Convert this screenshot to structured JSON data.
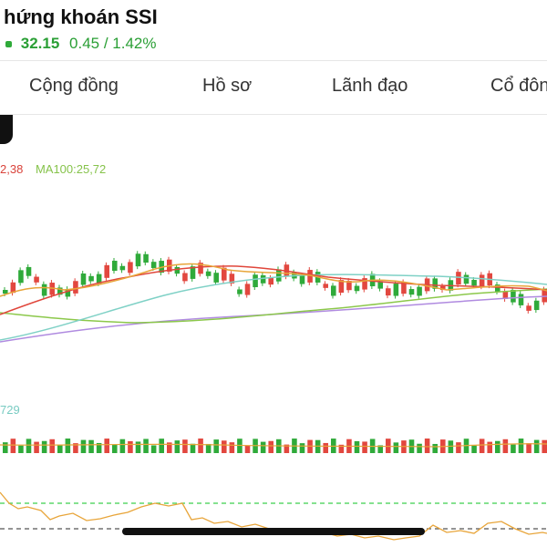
{
  "header": {
    "title": "hứng khoán SSI",
    "price": "32.15",
    "change": "0.45 / 1.42%"
  },
  "tabs": [
    {
      "label": "Cộng đồng"
    },
    {
      "label": "Hồ sơ"
    },
    {
      "label": "Lãnh đạo"
    },
    {
      "label": "Cổ đôn"
    }
  ],
  "indicators": {
    "ma_a": "2,38",
    "ma_b": "MA100:25,72",
    "volume_label": "729"
  },
  "colors": {
    "up": "#2faa3a",
    "down": "#e2473f",
    "ma_red": "#e0463b",
    "ma_orange": "#e8a53a",
    "ma_teal": "#7fd1c6",
    "ma_green": "#8cc84b",
    "ma_purple": "#b08be0",
    "rsi": "#e8a53a"
  },
  "chart_data": {
    "type": "candlestick",
    "title": "",
    "candles_direction": [
      "up",
      "down",
      "up",
      "up",
      "down",
      "up",
      "down",
      "up",
      "up",
      "down",
      "up",
      "up",
      "up",
      "down",
      "up",
      "up",
      "down",
      "up",
      "up",
      "up",
      "up",
      "down",
      "up",
      "down",
      "up",
      "down",
      "up",
      "up",
      "down",
      "down",
      "up",
      "down",
      "up",
      "up",
      "down",
      "up",
      "down",
      "up",
      "up",
      "down",
      "up",
      "down",
      "up",
      "down",
      "down",
      "up",
      "down",
      "up",
      "up",
      "down",
      "up",
      "down",
      "up",
      "up",
      "down",
      "up",
      "down",
      "up",
      "down",
      "up",
      "up",
      "down",
      "down",
      "up",
      "down",
      "up",
      "up",
      "down",
      "up",
      "down"
    ]
  }
}
